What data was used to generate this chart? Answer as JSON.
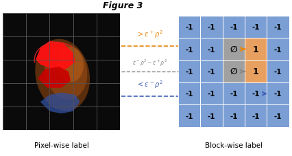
{
  "title": "Figure 3",
  "left_label": "Pixel-wise label",
  "right_label": "Block-wise label",
  "cell_color_blue": "#7b9fd4",
  "cell_color_gray": "#a0a0a0",
  "cell_color_orange": "#e8a060",
  "cell_values": [
    [
      "-1",
      "-1",
      "-1",
      "-1",
      "-1"
    ],
    [
      "-1",
      "-1",
      "∅",
      "1",
      "-1"
    ],
    [
      "-1",
      "-1",
      "∅",
      "1",
      "-1"
    ],
    [
      "-1",
      "-1",
      "-1",
      "-1",
      "-1"
    ],
    [
      "-1",
      "-1",
      "-1",
      "-1",
      "-1"
    ]
  ],
  "special_cells_gray": [
    [
      1,
      2
    ],
    [
      2,
      2
    ]
  ],
  "special_cells_orange": [
    [
      1,
      3
    ],
    [
      2,
      3
    ]
  ],
  "arrow_orange_row": 1,
  "arrow_gray_row": 2,
  "arrow_blue_row": 3,
  "color_orange": "#e8860a",
  "color_gray": "#888888",
  "color_blue": "#4060b8",
  "bg_color": "#ffffff"
}
